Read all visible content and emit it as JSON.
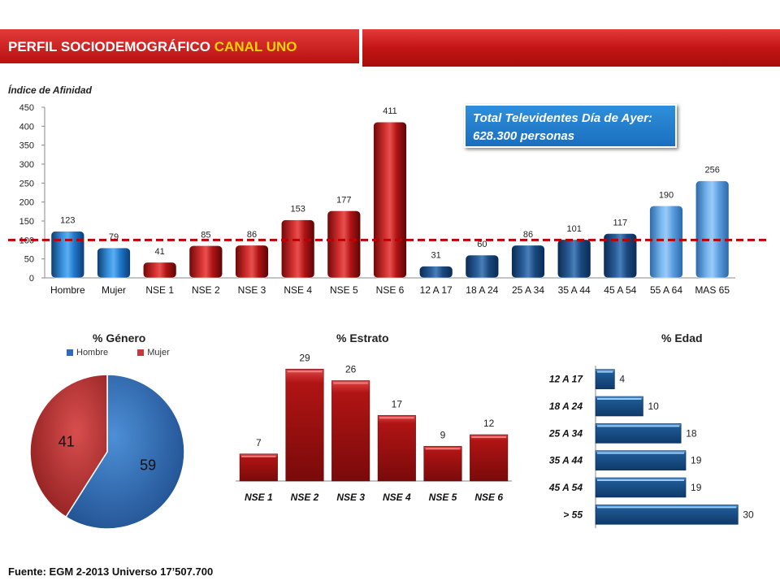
{
  "header": {
    "title_main": "PERFIL SOCIODEMOGRÁFICO",
    "title_accent": "CANAL UNO"
  },
  "callout": {
    "line1": "Total Televidentes Día de Ayer:",
    "line2": "628.300 personas"
  },
  "footer": "Fuente: EGM 2-2013 Universo 17’507.700",
  "colors": {
    "red": "#b01414",
    "blue_mid": "#1f77c9",
    "blue_dark": "#1a4a80",
    "blue_light": "#5a9ee0",
    "reference_line": "#c00000"
  },
  "chart_data": [
    {
      "type": "bar",
      "title": "",
      "ylabel": "Índice de Afinidad",
      "ylim": [
        0,
        450
      ],
      "yticks": [
        0,
        50,
        100,
        150,
        200,
        250,
        300,
        350,
        400,
        450
      ],
      "reference_line": 100,
      "categories": [
        "Hombre",
        "Mujer",
        "NSE 1",
        "NSE 2",
        "NSE 3",
        "NSE 4",
        "NSE 5",
        "NSE 6",
        "12 A 17",
        "18 A 24",
        "25 A 34",
        "35 A 44",
        "45 A 54",
        "55 A 64",
        "MAS 65"
      ],
      "values": [
        123,
        79,
        41,
        85,
        86,
        153,
        177,
        411,
        31,
        60,
        86,
        101,
        117,
        190,
        256
      ],
      "bar_colors": [
        "#1f77c9",
        "#2a86d6",
        "#b01414",
        "#b01414",
        "#b01414",
        "#b01414",
        "#b01414",
        "#b01414",
        "#1f5a95",
        "#1f5a95",
        "#1f5a95",
        "#1a4a80",
        "#1a3f70",
        "#5a9ee0",
        "#5a9ee0"
      ]
    },
    {
      "type": "pie",
      "title": "% Género",
      "labels": [
        "Hombre",
        "Mujer"
      ],
      "values": [
        59,
        41
      ],
      "colors": [
        "#2e6bb8",
        "#c23a3a"
      ],
      "legend": "top"
    },
    {
      "type": "bar",
      "title": "% Estrato",
      "categories": [
        "NSE 1",
        "NSE 2",
        "NSE 3",
        "NSE 4",
        "NSE 5",
        "NSE 6"
      ],
      "values": [
        7,
        29,
        26,
        17,
        9,
        12
      ],
      "ylim": [
        0,
        32
      ]
    },
    {
      "type": "bar",
      "orientation": "horizontal",
      "title": "% Edad",
      "categories": [
        "12 A 17",
        "18 A 24",
        "25 A 34",
        "35 A 44",
        "45 A 54",
        "> 55"
      ],
      "values": [
        4,
        10,
        18,
        19,
        19,
        30
      ],
      "xlim": [
        0,
        32
      ]
    }
  ]
}
